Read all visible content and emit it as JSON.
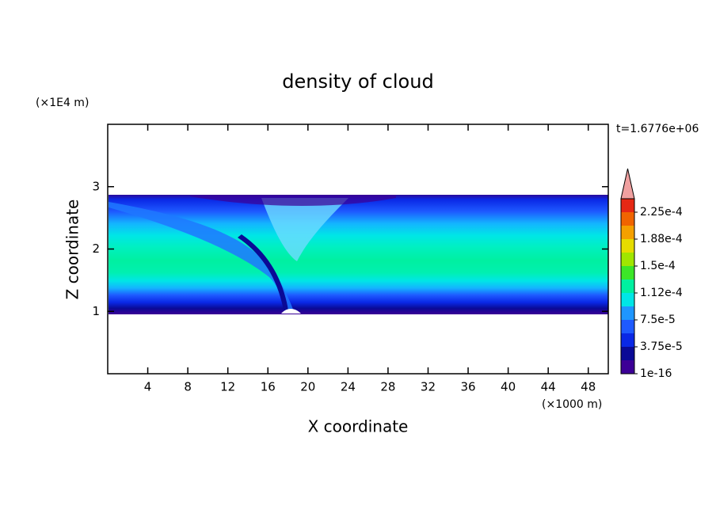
{
  "chart_data": {
    "type": "contour",
    "title": "density of cloud",
    "xlabel": "X coordinate",
    "ylabel": "Z coordinate",
    "x_unit": "(×1000 m)",
    "y_unit": "(×1E4 m)",
    "time_label": "t=1.6776e+06",
    "xlim": [
      0,
      50
    ],
    "ylim": [
      0,
      4
    ],
    "xticks": [
      4,
      8,
      12,
      16,
      20,
      24,
      28,
      32,
      36,
      40,
      44,
      48
    ],
    "yticks": [
      1,
      2,
      3
    ],
    "colorbar": {
      "clim": [
        1e-16,
        0.00024375
      ],
      "colors": [
        "#3c0096",
        "#0a0a96",
        "#0a28e6",
        "#1e5aff",
        "#1e96ff",
        "#00e6e6",
        "#00f0a0",
        "#3ce628",
        "#a0e600",
        "#e6dc00",
        "#f5a000",
        "#f06400",
        "#e62814"
      ],
      "extend_color": "#f0a0a0",
      "ticks": [
        {
          "value": 1e-16,
          "label": "1e-16"
        },
        {
          "value": 3.75e-05,
          "label": "3.75e-5"
        },
        {
          "value": 7.5e-05,
          "label": "7.5e-5"
        },
        {
          "value": 0.0001125,
          "label": "1.12e-4"
        },
        {
          "value": 0.00015,
          "label": "1.5e-4"
        },
        {
          "value": 0.0001875,
          "label": "1.88e-4"
        },
        {
          "value": 0.000225,
          "label": "2.25e-4"
        }
      ]
    }
  }
}
